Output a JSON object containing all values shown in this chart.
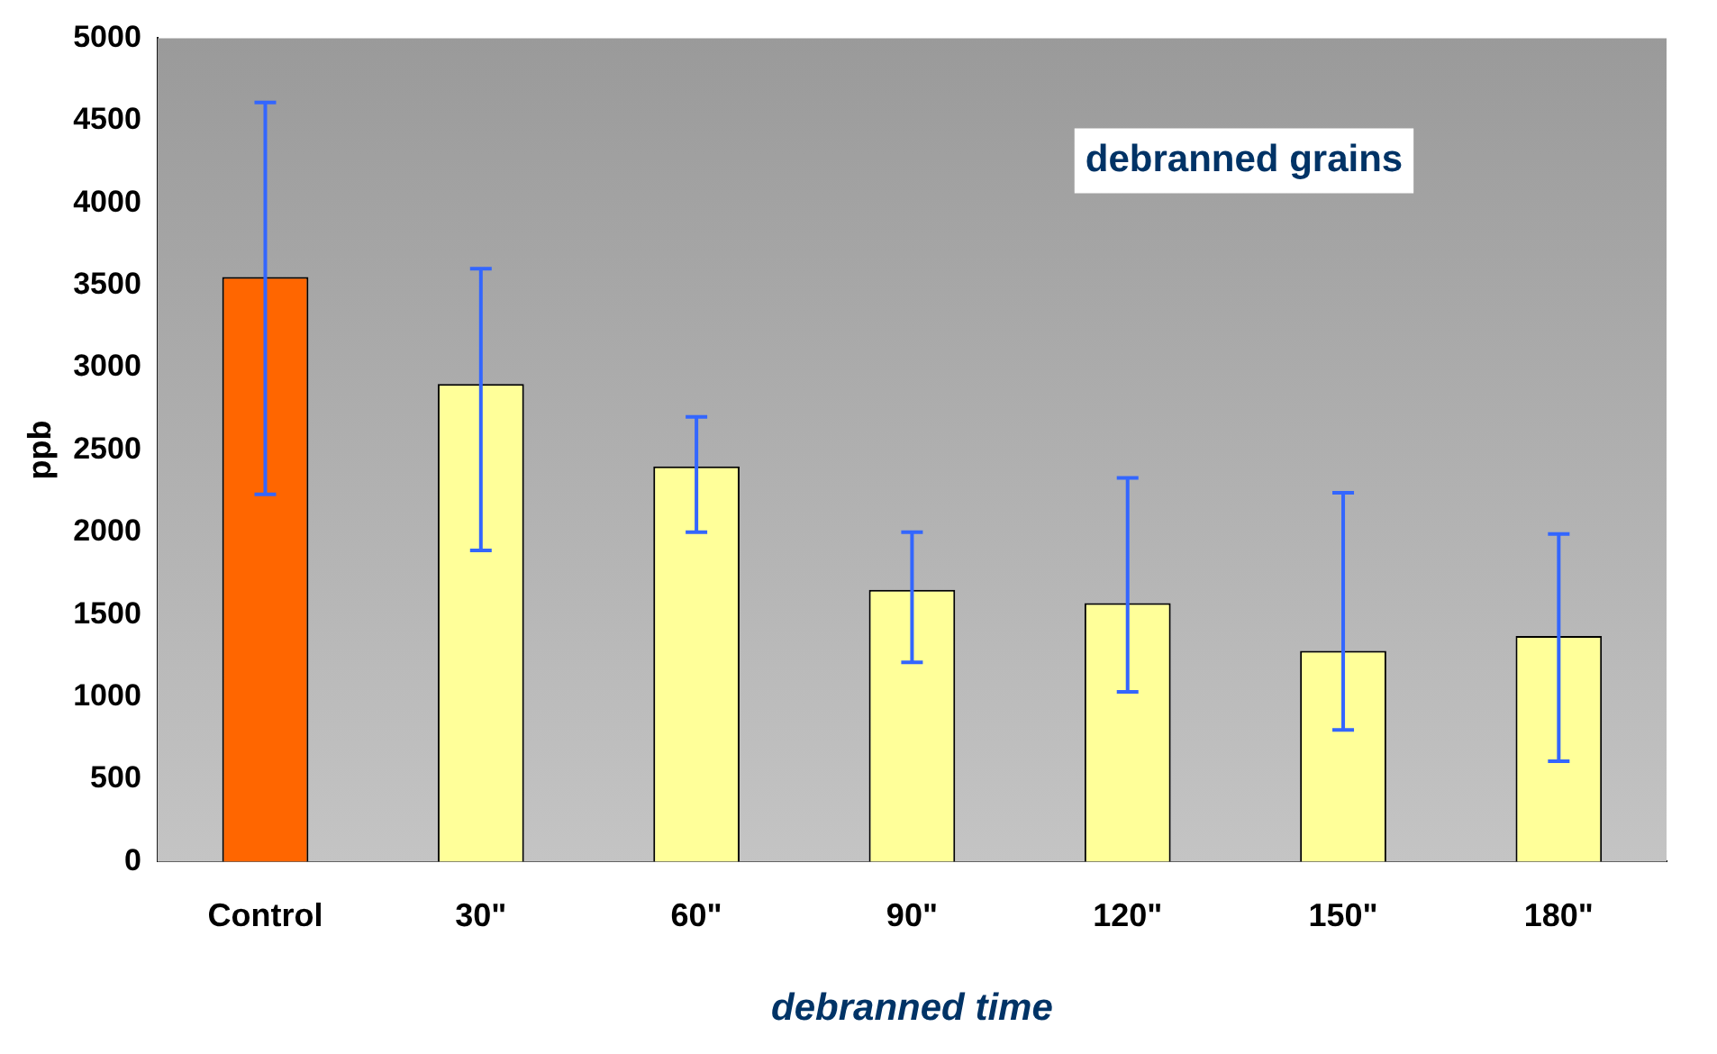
{
  "chart_data": {
    "type": "bar",
    "xlabel": "debranned time",
    "ylabel": "ppb",
    "categories": [
      "Control",
      "30\"",
      "60\"",
      "90\"",
      "120\"",
      "150\"",
      "180\""
    ],
    "values": [
      3550,
      2900,
      2400,
      1650,
      1570,
      1280,
      1370
    ],
    "colors": [
      "#ff6600",
      "#ffff99",
      "#ffff99",
      "#ffff99",
      "#ffff99",
      "#ffff99",
      "#ffff99"
    ],
    "errors": [
      [
        2230,
        4610
      ],
      [
        1890,
        3600
      ],
      [
        2000,
        2700
      ],
      [
        1210,
        2000
      ],
      [
        1030,
        2330
      ],
      [
        800,
        2240
      ],
      [
        610,
        1990
      ]
    ],
    "ylim": [
      0,
      5000
    ],
    "yticks": [
      0,
      500,
      1000,
      1500,
      2000,
      2500,
      3000,
      3500,
      4000,
      4500,
      5000
    ],
    "grid": false,
    "legend": false,
    "annotations": [
      "debranned grains"
    ]
  }
}
